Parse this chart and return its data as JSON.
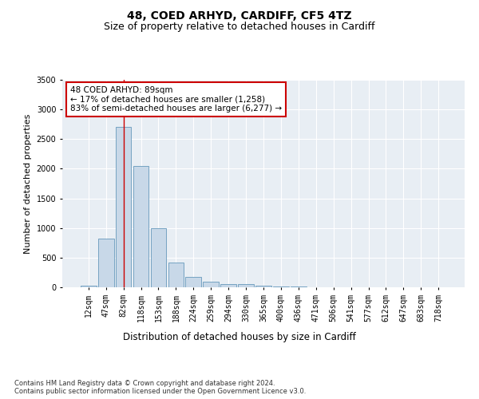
{
  "title1": "48, COED ARHYD, CARDIFF, CF5 4TZ",
  "title2": "Size of property relative to detached houses in Cardiff",
  "xlabel": "Distribution of detached houses by size in Cardiff",
  "ylabel": "Number of detached properties",
  "categories": [
    "12sqm",
    "47sqm",
    "82sqm",
    "118sqm",
    "153sqm",
    "188sqm",
    "224sqm",
    "259sqm",
    "294sqm",
    "330sqm",
    "365sqm",
    "400sqm",
    "436sqm",
    "471sqm",
    "506sqm",
    "541sqm",
    "577sqm",
    "612sqm",
    "647sqm",
    "683sqm",
    "718sqm"
  ],
  "values": [
    30,
    820,
    2700,
    2050,
    1000,
    420,
    180,
    90,
    60,
    60,
    30,
    15,
    10,
    5,
    3,
    2,
    1,
    1,
    1,
    1,
    1
  ],
  "bar_color": "#c8d8e8",
  "bar_edge_color": "#6699bb",
  "vline_x": 2,
  "vline_color": "#cc0000",
  "annotation_text": "48 COED ARHYD: 89sqm\n← 17% of detached houses are smaller (1,258)\n83% of semi-detached houses are larger (6,277) →",
  "annotation_box_color": "#ffffff",
  "annotation_box_edge": "#cc0000",
  "ylim": [
    0,
    3500
  ],
  "yticks": [
    0,
    500,
    1000,
    1500,
    2000,
    2500,
    3000,
    3500
  ],
  "background_color": "#e8eef4",
  "grid_color": "#ffffff",
  "footer": "Contains HM Land Registry data © Crown copyright and database right 2024.\nContains public sector information licensed under the Open Government Licence v3.0.",
  "title1_fontsize": 10,
  "title2_fontsize": 9,
  "xlabel_fontsize": 8.5,
  "ylabel_fontsize": 8,
  "tick_fontsize": 7,
  "annotation_fontsize": 7.5,
  "footer_fontsize": 6
}
